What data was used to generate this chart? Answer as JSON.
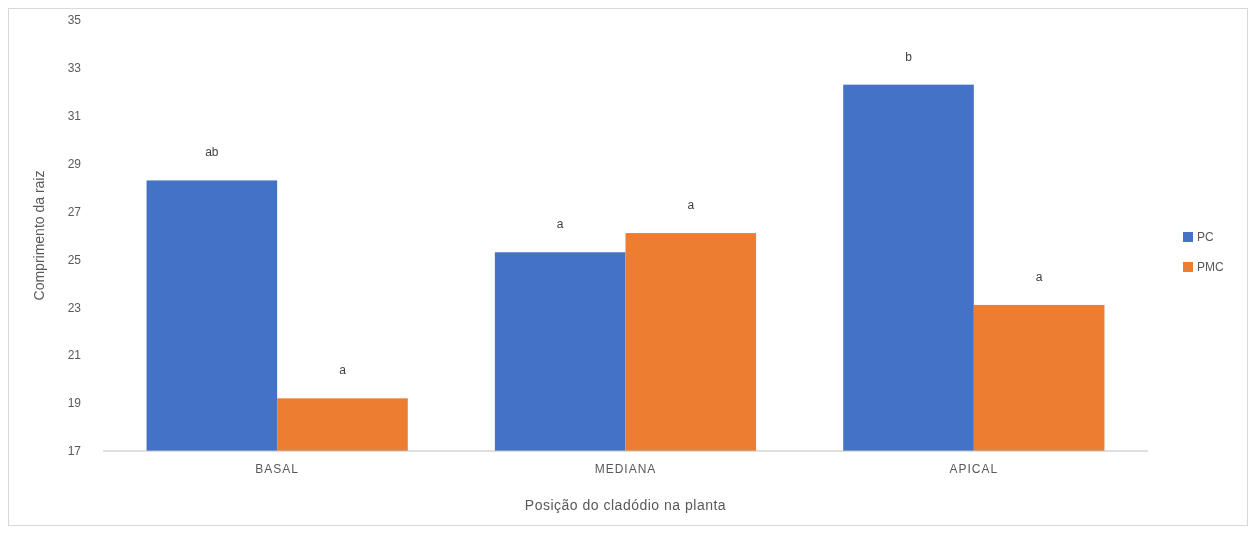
{
  "chart_data": {
    "type": "bar",
    "xlabel": "Posição do cladódio na planta",
    "ylabel": "Comprimento da raiz",
    "categories": [
      "BASAL",
      "MEDIANA",
      "APICAL"
    ],
    "series": [
      {
        "name": "PC",
        "color": "#4472c4",
        "values": [
          28.3,
          25.3,
          32.3
        ]
      },
      {
        "name": "PMC",
        "color": "#ed7d31",
        "values": [
          19.2,
          26.1,
          23.1
        ]
      }
    ],
    "ylim": [
      17,
      35
    ],
    "yticks": [
      17,
      19,
      21,
      23,
      25,
      27,
      29,
      31,
      33,
      35
    ],
    "legend": "right",
    "annotations": [
      "ab",
      "a",
      "a",
      "a",
      "b",
      "a"
    ]
  }
}
